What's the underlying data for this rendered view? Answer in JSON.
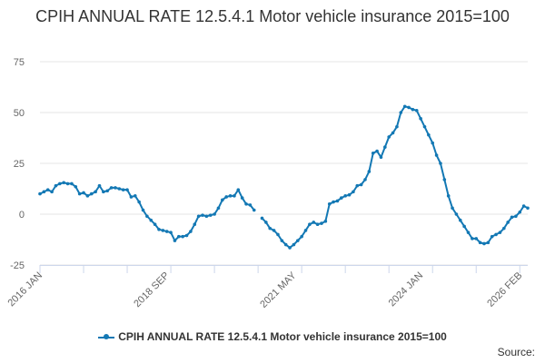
{
  "chart_data": {
    "type": "line",
    "title": "CPIH ANNUAL RATE 12.5.4.1 Motor vehicle insurance 2015=100",
    "xlabel": "",
    "ylabel": "",
    "ylim": [
      -25,
      75
    ],
    "yticks": [
      "75",
      "50",
      "25",
      "0",
      "-25"
    ],
    "xtick_labels": [
      "2016 JAN",
      "2018 SEP",
      "2021 MAY",
      "2024 JAN",
      "2026 FEB"
    ],
    "grid": "horizontal",
    "legend_position": "bottom",
    "series": [
      {
        "name": "CPIH ANNUAL RATE 12.5.4.1 Motor vehicle insurance 2015=100",
        "color": "#1378b4",
        "points": [
          [
            "2016 JAN",
            10.0
          ],
          [
            "2016 FEB",
            11.0
          ],
          [
            "2016 MAR",
            12.0
          ],
          [
            "2016 APR",
            11.0
          ],
          [
            "2016 MAY",
            14.0
          ],
          [
            "2016 JUN",
            15.0
          ],
          [
            "2016 JUL",
            15.5
          ],
          [
            "2016 AUG",
            15.0
          ],
          [
            "2016 SEP",
            15.0
          ],
          [
            "2016 OCT",
            13.5
          ],
          [
            "2016 NOV",
            10.0
          ],
          [
            "2016 DEC",
            10.5
          ],
          [
            "2017 JAN",
            9.0
          ],
          [
            "2017 FEB",
            10.0
          ],
          [
            "2017 MAR",
            11.0
          ],
          [
            "2017 APR",
            14.0
          ],
          [
            "2017 MAY",
            11.0
          ],
          [
            "2017 JUN",
            11.5
          ],
          [
            "2017 JUL",
            13.0
          ],
          [
            "2017 AUG",
            13.0
          ],
          [
            "2017 SEP",
            12.5
          ],
          [
            "2017 OCT",
            12.0
          ],
          [
            "2017 NOV",
            12.0
          ],
          [
            "2017 DEC",
            8.5
          ],
          [
            "2018 JAN",
            9.0
          ],
          [
            "2018 FEB",
            6.0
          ],
          [
            "2018 MAR",
            2.0
          ],
          [
            "2018 APR",
            -1.0
          ],
          [
            "2018 MAY",
            -3.0
          ],
          [
            "2018 JUN",
            -5.0
          ],
          [
            "2018 JUL",
            -7.5
          ],
          [
            "2018 AUG",
            -8.0
          ],
          [
            "2018 SEP",
            -8.5
          ],
          [
            "2018 OCT",
            -9.0
          ],
          [
            "2018 NOV",
            -13.0
          ],
          [
            "2018 DEC",
            -11.0
          ],
          [
            "2019 JAN",
            -11.0
          ],
          [
            "2019 FEB",
            -10.5
          ],
          [
            "2019 MAR",
            -8.5
          ],
          [
            "2019 APR",
            -5.0
          ],
          [
            "2019 MAY",
            -1.0
          ],
          [
            "2019 JUN",
            -0.5
          ],
          [
            "2019 JUL",
            -1.0
          ],
          [
            "2019 AUG",
            -0.5
          ],
          [
            "2019 SEP",
            0.0
          ],
          [
            "2019 OCT",
            3.0
          ],
          [
            "2019 NOV",
            7.0
          ],
          [
            "2019 DEC",
            8.5
          ],
          [
            "2020 JAN",
            9.0
          ],
          [
            "2020 FEB",
            9.0
          ],
          [
            "2020 MAR",
            12.0
          ],
          [
            "2020 APR",
            8.0
          ],
          [
            "2020 MAY",
            5.0
          ],
          [
            "2020 JUN",
            4.5
          ],
          [
            "2020 JUL",
            2.0
          ],
          [
            "2020 AUG",
            null
          ],
          [
            "2020 SEP",
            -2.0
          ],
          [
            "2020 OCT",
            -4.0
          ],
          [
            "2020 NOV",
            -7.0
          ],
          [
            "2020 DEC",
            -8.0
          ],
          [
            "2021 JAN",
            -10.0
          ],
          [
            "2021 FEB",
            -13.0
          ],
          [
            "2021 MAR",
            -15.0
          ],
          [
            "2021 APR",
            -16.5
          ],
          [
            "2021 MAY",
            -15.0
          ],
          [
            "2021 JUN",
            -13.0
          ],
          [
            "2021 JUL",
            -11.0
          ],
          [
            "2021 AUG",
            -8.0
          ],
          [
            "2021 SEP",
            -5.0
          ],
          [
            "2021 OCT",
            -4.0
          ],
          [
            "2021 NOV",
            -5.0
          ],
          [
            "2021 DEC",
            -4.5
          ],
          [
            "2022 JAN",
            -3.5
          ],
          [
            "2022 FEB",
            5.0
          ],
          [
            "2022 MAR",
            6.0
          ],
          [
            "2022 APR",
            6.5
          ],
          [
            "2022 MAY",
            8.0
          ],
          [
            "2022 JUN",
            9.0
          ],
          [
            "2022 JUL",
            9.5
          ],
          [
            "2022 AUG",
            11.0
          ],
          [
            "2022 SEP",
            14.0
          ],
          [
            "2022 OCT",
            14.5
          ],
          [
            "2022 NOV",
            17.0
          ],
          [
            "2022 DEC",
            21.0
          ],
          [
            "2023 JAN",
            30.0
          ],
          [
            "2023 FEB",
            31.0
          ],
          [
            "2023 MAR",
            28.0
          ],
          [
            "2023 APR",
            33.0
          ],
          [
            "2023 MAY",
            38.0
          ],
          [
            "2023 JUN",
            40.0
          ],
          [
            "2023 JUL",
            43.0
          ],
          [
            "2023 AUG",
            50.0
          ],
          [
            "2023 SEP",
            53.0
          ],
          [
            "2023 OCT",
            52.5
          ],
          [
            "2023 NOV",
            51.5
          ],
          [
            "2023 DEC",
            51.0
          ],
          [
            "2024 JAN",
            47.0
          ],
          [
            "2024 FEB",
            43.0
          ],
          [
            "2024 MAR",
            39.0
          ],
          [
            "2024 APR",
            35.0
          ],
          [
            "2024 MAY",
            29.0
          ],
          [
            "2024 JUN",
            25.0
          ],
          [
            "2024 JUL",
            17.0
          ],
          [
            "2024 AUG",
            9.0
          ],
          [
            "2024 SEP",
            3.0
          ],
          [
            "2024 OCT",
            0.0
          ],
          [
            "2024 NOV",
            -3.0
          ],
          [
            "2024 DEC",
            -6.0
          ],
          [
            "2025 JAN",
            -9.0
          ],
          [
            "2025 FEB",
            -12.0
          ],
          [
            "2025 MAR",
            -12.0
          ],
          [
            "2025 APR",
            -14.0
          ],
          [
            "2025 MAY",
            -14.5
          ],
          [
            "2025 JUN",
            -14.0
          ],
          [
            "2025 JUL",
            -11.0
          ],
          [
            "2025 AUG",
            -10.0
          ],
          [
            "2025 SEP",
            -9.0
          ],
          [
            "2025 OCT",
            -7.0
          ],
          [
            "2025 NOV",
            -4.0
          ],
          [
            "2025 DEC",
            -1.5
          ],
          [
            "2026 JAN",
            -1.0
          ],
          [
            "2026 FEB",
            1.0
          ],
          [
            "2026 MAR",
            4.0
          ],
          [
            "2026 APR",
            3.0
          ]
        ]
      }
    ]
  },
  "legend": {
    "label": "CPIH ANNUAL RATE 12.5.4.1 Motor vehicle insurance 2015=100"
  },
  "footer": {
    "source_label": "Source:"
  }
}
